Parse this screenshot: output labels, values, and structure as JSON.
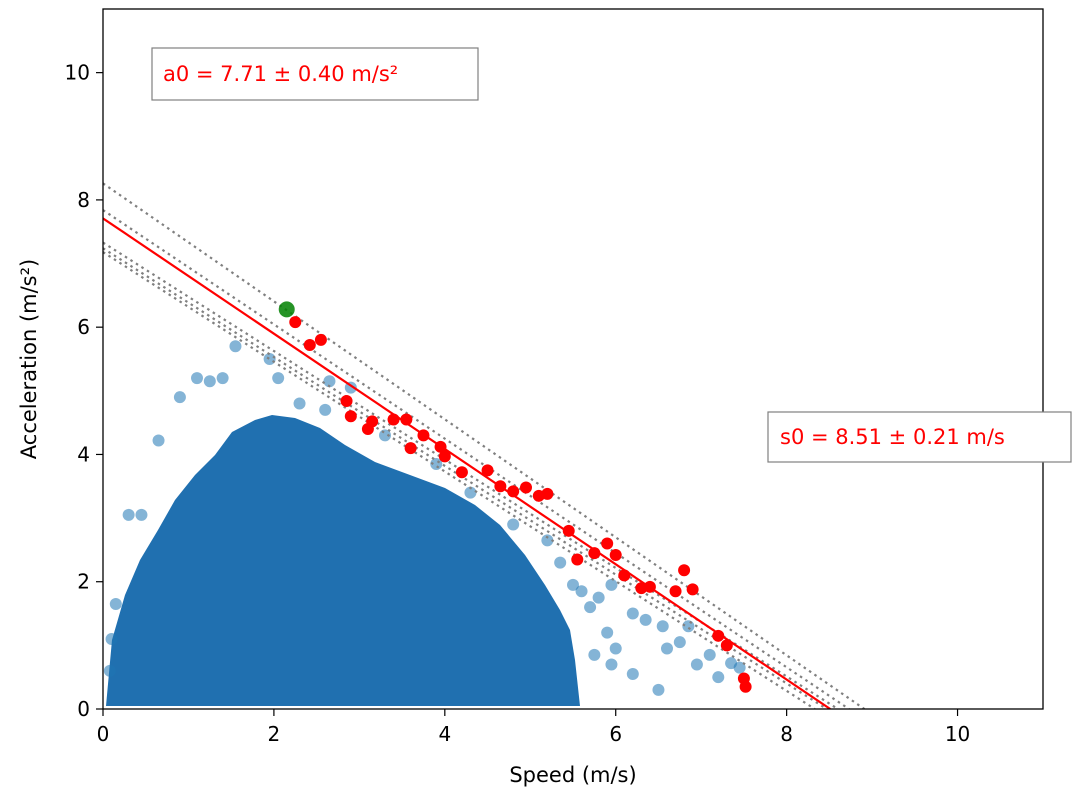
{
  "chart_data": {
    "type": "scatter",
    "title": "",
    "xlabel": "Speed (m/s)",
    "ylabel": "Acceleration (m/s²)",
    "xlim": [
      0,
      11
    ],
    "ylim": [
      0,
      11
    ],
    "xticks": [
      0,
      2,
      4,
      6,
      8,
      10
    ],
    "yticks": [
      0,
      2,
      4,
      6,
      8,
      10
    ],
    "grid": false,
    "legend": "none",
    "colors": {
      "cloud": "#1f77b4",
      "frontier": "#ff0000",
      "fit": "#ff0000",
      "bounds": "#808080",
      "peak": "#008000"
    },
    "fit_line": {
      "intercept_y": 7.71,
      "intercept_x": 8.51
    },
    "bound_lines": [
      {
        "intercept_y": 8.26,
        "intercept_x": 8.91
      },
      {
        "intercept_y": 7.84,
        "intercept_x": 8.73
      },
      {
        "intercept_y": 7.33,
        "intercept_x": 8.6
      },
      {
        "intercept_y": 7.24,
        "intercept_x": 8.47
      },
      {
        "intercept_y": 7.18,
        "intercept_x": 8.33
      }
    ],
    "peak_point": {
      "x": 2.15,
      "y": 6.28
    },
    "frontier_points": [
      [
        2.25,
        6.08
      ],
      [
        2.42,
        5.72
      ],
      [
        2.55,
        5.8
      ],
      [
        2.85,
        4.84
      ],
      [
        2.9,
        4.6
      ],
      [
        3.1,
        4.4
      ],
      [
        3.15,
        4.52
      ],
      [
        3.4,
        4.55
      ],
      [
        3.55,
        4.55
      ],
      [
        3.6,
        4.1
      ],
      [
        3.75,
        4.3
      ],
      [
        3.95,
        4.12
      ],
      [
        4.0,
        3.97
      ],
      [
        4.2,
        3.72
      ],
      [
        4.5,
        3.75
      ],
      [
        4.65,
        3.5
      ],
      [
        4.8,
        3.42
      ],
      [
        4.95,
        3.48
      ],
      [
        5.1,
        3.35
      ],
      [
        5.2,
        3.38
      ],
      [
        5.45,
        2.8
      ],
      [
        5.55,
        2.35
      ],
      [
        5.75,
        2.45
      ],
      [
        5.9,
        2.6
      ],
      [
        6.0,
        2.42
      ],
      [
        6.1,
        2.1
      ],
      [
        6.3,
        1.9
      ],
      [
        6.4,
        1.92
      ],
      [
        6.7,
        1.85
      ],
      [
        6.8,
        2.18
      ],
      [
        6.9,
        1.88
      ],
      [
        7.2,
        1.15
      ],
      [
        7.3,
        1.0
      ],
      [
        7.5,
        0.48
      ],
      [
        7.52,
        0.35
      ]
    ],
    "outlier_points": [
      [
        0.3,
        3.05
      ],
      [
        0.45,
        3.05
      ],
      [
        0.65,
        4.22
      ],
      [
        0.9,
        4.9
      ],
      [
        1.1,
        5.2
      ],
      [
        1.25,
        5.15
      ],
      [
        1.4,
        5.2
      ],
      [
        1.55,
        5.7
      ],
      [
        1.95,
        5.5
      ],
      [
        2.05,
        5.2
      ],
      [
        2.3,
        4.8
      ],
      [
        2.6,
        4.7
      ],
      [
        2.65,
        5.15
      ],
      [
        2.9,
        5.05
      ],
      [
        3.3,
        4.3
      ],
      [
        3.9,
        3.85
      ],
      [
        4.3,
        3.4
      ],
      [
        4.8,
        2.9
      ],
      [
        5.2,
        2.65
      ],
      [
        5.35,
        2.3
      ],
      [
        5.6,
        1.85
      ],
      [
        5.7,
        1.6
      ],
      [
        5.95,
        1.95
      ],
      [
        6.2,
        1.5
      ],
      [
        6.35,
        1.4
      ],
      [
        6.55,
        1.3
      ],
      [
        6.75,
        1.05
      ],
      [
        6.95,
        0.7
      ],
      [
        7.1,
        0.85
      ],
      [
        7.35,
        0.72
      ],
      [
        7.45,
        0.65
      ],
      [
        6.5,
        0.3
      ],
      [
        6.2,
        0.55
      ],
      [
        5.95,
        0.7
      ],
      [
        5.75,
        0.85
      ],
      [
        6.6,
        0.95
      ],
      [
        5.9,
        1.2
      ],
      [
        6.0,
        0.95
      ],
      [
        7.2,
        0.5
      ],
      [
        0.08,
        0.6
      ],
      [
        0.15,
        1.65
      ],
      [
        0.1,
        1.1
      ],
      [
        6.85,
        1.3
      ],
      [
        5.8,
        1.75
      ],
      [
        5.5,
        1.95
      ]
    ],
    "annotations": [
      "a0 = 7.71 ± 0.40 m/s²",
      "s0 = 8.51 ± 0.21 m/s"
    ]
  }
}
